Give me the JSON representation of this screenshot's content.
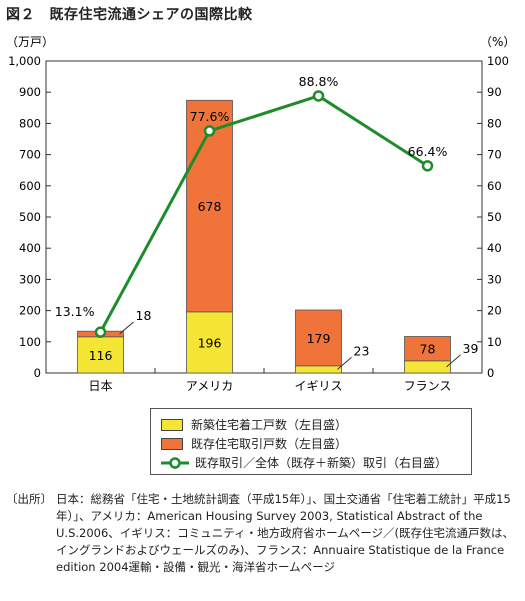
{
  "figure": {
    "title": "図２　既存住宅流通シェアの国際比較"
  },
  "chart_data": {
    "type": "bar",
    "stacked": true,
    "categories": [
      "日本",
      "アメリカ",
      "イギリス",
      "フランス"
    ],
    "left_axis_unit": "（万戸）",
    "right_axis_unit": "（%）",
    "left_ticks": [
      "0",
      "100",
      "200",
      "300",
      "400",
      "500",
      "600",
      "700",
      "800",
      "900",
      "1,000"
    ],
    "right_ticks": [
      "0",
      "10",
      "20",
      "30",
      "40",
      "50",
      "60",
      "70",
      "80",
      "90",
      "100"
    ],
    "ylim": [
      0,
      1000
    ],
    "y2lim": [
      0,
      100
    ],
    "series": [
      {
        "name": "新築住宅着工戸数（左目盛）",
        "axis": "left",
        "values": [
          116,
          196,
          23,
          39
        ],
        "labels": [
          "116",
          "196",
          "23",
          "39"
        ],
        "color": "#f5e535"
      },
      {
        "name": "既存住宅取引戸数（左目盛）",
        "axis": "left",
        "values": [
          18,
          678,
          179,
          78
        ],
        "labels": [
          "18",
          "678",
          "179",
          "78"
        ],
        "color": "#f0743a"
      },
      {
        "name": "既存取引／全体（既存＋新築）取引（右目盛）",
        "axis": "right",
        "type": "line",
        "values": [
          13.1,
          77.6,
          88.8,
          66.4
        ],
        "labels": [
          "13.1%",
          "77.6%",
          "88.8%",
          "66.4%"
        ],
        "color": "#1e8c2a"
      }
    ],
    "grid": false,
    "legend_position": "bottom"
  },
  "source": {
    "label": "〔出所〕",
    "text": "日本：総務省「住宅・土地統計調査（平成15年）」、国土交通省「住宅着工統計」平成15年）」、アメリカ：American Housing Survey 2003, Statistical Abstract of the U.S.2006、イギリス：コミュニティ・地方政府省ホームページ／(既存住宅流通戸数は、イングランドおよびウェールズのみ)、フランス：Annuaire Statistique de la France edition 2004運輸・設備・観光・海洋省ホームページ"
  }
}
